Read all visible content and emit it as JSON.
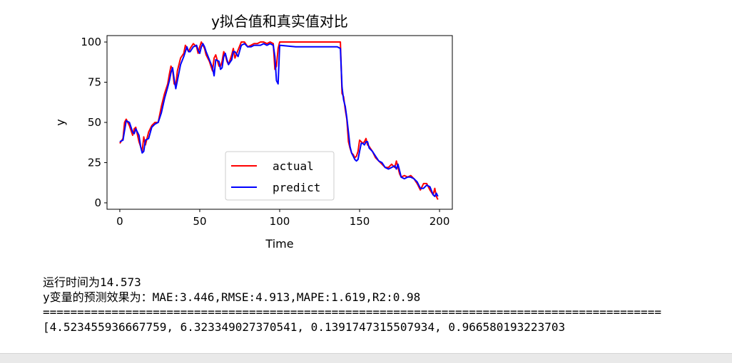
{
  "chart_data": {
    "type": "line",
    "title": "y拟合值和真实值对比",
    "xlabel": "Time",
    "ylabel": "y",
    "xlim": [
      -8,
      208
    ],
    "ylim": [
      -4,
      104
    ],
    "xticks": [
      0,
      50,
      100,
      150,
      200
    ],
    "yticks": [
      0,
      25,
      50,
      75,
      100
    ],
    "legend_position": "lower-center",
    "series": [
      {
        "name": "actual",
        "color": "#ff0000",
        "points": [
          [
            0,
            37
          ],
          [
            2,
            40
          ],
          [
            3,
            50
          ],
          [
            4,
            52
          ],
          [
            6,
            48
          ],
          [
            8,
            42
          ],
          [
            9,
            46
          ],
          [
            10,
            47
          ],
          [
            12,
            38
          ],
          [
            13,
            35
          ],
          [
            14,
            32
          ],
          [
            15,
            41
          ],
          [
            16,
            36
          ],
          [
            18,
            44
          ],
          [
            20,
            48
          ],
          [
            22,
            50
          ],
          [
            24,
            50
          ],
          [
            26,
            60
          ],
          [
            28,
            68
          ],
          [
            30,
            74
          ],
          [
            31,
            80
          ],
          [
            32,
            85
          ],
          [
            33,
            83
          ],
          [
            34,
            74
          ],
          [
            35,
            73
          ],
          [
            36,
            82
          ],
          [
            38,
            90
          ],
          [
            40,
            93
          ],
          [
            41,
            98
          ],
          [
            42,
            96
          ],
          [
            43,
            94
          ],
          [
            44,
            96
          ],
          [
            46,
            99
          ],
          [
            48,
            97
          ],
          [
            49,
            93
          ],
          [
            50,
            97
          ],
          [
            51,
            100
          ],
          [
            52,
            98
          ],
          [
            53,
            96
          ],
          [
            54,
            92
          ],
          [
            56,
            88
          ],
          [
            58,
            82
          ],
          [
            59,
            90
          ],
          [
            60,
            92
          ],
          [
            62,
            85
          ],
          [
            63,
            85
          ],
          [
            64,
            88
          ],
          [
            65,
            94
          ],
          [
            66,
            92
          ],
          [
            67,
            88
          ],
          [
            68,
            86
          ],
          [
            70,
            92
          ],
          [
            71,
            96
          ],
          [
            72,
            90
          ],
          [
            74,
            95
          ],
          [
            76,
            100
          ],
          [
            78,
            100
          ],
          [
            80,
            97
          ],
          [
            82,
            98
          ],
          [
            84,
            99
          ],
          [
            86,
            99
          ],
          [
            88,
            100
          ],
          [
            90,
            100
          ],
          [
            92,
            99
          ],
          [
            94,
            100
          ],
          [
            96,
            99
          ],
          [
            97,
            83
          ],
          [
            98,
            85
          ],
          [
            99,
            96
          ],
          [
            100,
            100
          ],
          [
            110,
            100
          ],
          [
            120,
            100
          ],
          [
            130,
            100
          ],
          [
            136,
            100
          ],
          [
            138,
            100
          ],
          [
            139,
            68
          ],
          [
            140,
            66
          ],
          [
            141,
            58
          ],
          [
            142,
            52
          ],
          [
            143,
            38
          ],
          [
            144,
            34
          ],
          [
            145,
            31
          ],
          [
            146,
            30
          ],
          [
            147,
            28
          ],
          [
            148,
            29
          ],
          [
            149,
            32
          ],
          [
            150,
            39
          ],
          [
            151,
            38
          ],
          [
            152,
            37
          ],
          [
            153,
            38
          ],
          [
            154,
            40
          ],
          [
            155,
            36
          ],
          [
            156,
            35
          ],
          [
            158,
            32
          ],
          [
            160,
            28
          ],
          [
            162,
            26
          ],
          [
            164,
            24
          ],
          [
            166,
            22
          ],
          [
            168,
            22
          ],
          [
            170,
            24
          ],
          [
            172,
            22
          ],
          [
            173,
            26
          ],
          [
            174,
            22
          ],
          [
            175,
            18
          ],
          [
            176,
            16
          ],
          [
            178,
            17
          ],
          [
            180,
            16
          ],
          [
            182,
            17
          ],
          [
            184,
            15
          ],
          [
            186,
            12
          ],
          [
            188,
            8
          ],
          [
            190,
            12
          ],
          [
            192,
            12
          ],
          [
            194,
            8
          ],
          [
            196,
            5
          ],
          [
            197,
            9
          ],
          [
            198,
            4
          ],
          [
            199,
            2
          ]
        ]
      },
      {
        "name": "predict",
        "color": "#0000ff",
        "points": [
          [
            0,
            38
          ],
          [
            2,
            39
          ],
          [
            3,
            45
          ],
          [
            4,
            51
          ],
          [
            6,
            50
          ],
          [
            8,
            44
          ],
          [
            9,
            43
          ],
          [
            10,
            46
          ],
          [
            12,
            42
          ],
          [
            13,
            35
          ],
          [
            14,
            31
          ],
          [
            15,
            32
          ],
          [
            16,
            39
          ],
          [
            18,
            40
          ],
          [
            20,
            47
          ],
          [
            22,
            49
          ],
          [
            24,
            50
          ],
          [
            26,
            56
          ],
          [
            28,
            65
          ],
          [
            30,
            72
          ],
          [
            31,
            76
          ],
          [
            32,
            81
          ],
          [
            33,
            84
          ],
          [
            34,
            77
          ],
          [
            35,
            71
          ],
          [
            36,
            76
          ],
          [
            38,
            86
          ],
          [
            40,
            91
          ],
          [
            41,
            94
          ],
          [
            42,
            97
          ],
          [
            43,
            94
          ],
          [
            44,
            94
          ],
          [
            46,
            97
          ],
          [
            48,
            98
          ],
          [
            49,
            95
          ],
          [
            50,
            93
          ],
          [
            51,
            97
          ],
          [
            52,
            99
          ],
          [
            53,
            97
          ],
          [
            54,
            94
          ],
          [
            56,
            89
          ],
          [
            58,
            84
          ],
          [
            59,
            79
          ],
          [
            60,
            89
          ],
          [
            62,
            88
          ],
          [
            63,
            83
          ],
          [
            64,
            84
          ],
          [
            65,
            91
          ],
          [
            66,
            93
          ],
          [
            67,
            89
          ],
          [
            68,
            86
          ],
          [
            70,
            89
          ],
          [
            71,
            94
          ],
          [
            72,
            94
          ],
          [
            74,
            91
          ],
          [
            76,
            98
          ],
          [
            78,
            99
          ],
          [
            80,
            97
          ],
          [
            82,
            97
          ],
          [
            84,
            98
          ],
          [
            86,
            98
          ],
          [
            88,
            98
          ],
          [
            90,
            99
          ],
          [
            92,
            98
          ],
          [
            94,
            99
          ],
          [
            96,
            98
          ],
          [
            97,
            91
          ],
          [
            98,
            76
          ],
          [
            99,
            74
          ],
          [
            100,
            98
          ],
          [
            110,
            97
          ],
          [
            120,
            97
          ],
          [
            130,
            97
          ],
          [
            136,
            97
          ],
          [
            138,
            96
          ],
          [
            139,
            72
          ],
          [
            140,
            64
          ],
          [
            141,
            60
          ],
          [
            142,
            53
          ],
          [
            143,
            44
          ],
          [
            144,
            35
          ],
          [
            145,
            31
          ],
          [
            146,
            29
          ],
          [
            147,
            27
          ],
          [
            148,
            26
          ],
          [
            149,
            27
          ],
          [
            150,
            32
          ],
          [
            151,
            37
          ],
          [
            152,
            37
          ],
          [
            153,
            36
          ],
          [
            154,
            38
          ],
          [
            155,
            38
          ],
          [
            156,
            34
          ],
          [
            158,
            32
          ],
          [
            160,
            29
          ],
          [
            162,
            26
          ],
          [
            164,
            25
          ],
          [
            166,
            22
          ],
          [
            168,
            21
          ],
          [
            170,
            22
          ],
          [
            172,
            23
          ],
          [
            173,
            21
          ],
          [
            174,
            24
          ],
          [
            175,
            20
          ],
          [
            176,
            16
          ],
          [
            178,
            15
          ],
          [
            180,
            16
          ],
          [
            182,
            16
          ],
          [
            184,
            15
          ],
          [
            186,
            13
          ],
          [
            188,
            9
          ],
          [
            190,
            9
          ],
          [
            192,
            11
          ],
          [
            194,
            10
          ],
          [
            196,
            5
          ],
          [
            197,
            4
          ],
          [
            198,
            6
          ],
          [
            199,
            4
          ]
        ]
      }
    ]
  },
  "output": {
    "lines": [
      "运行时间为14.573",
      "y变量的预测效果为：MAE:3.446,RMSE:4.913,MAPE:1.619,R2:0.98",
      "==========================================================================================",
      "[4.523455936667759, 6.323349027370541, 0.1391747315507934, 0.966580193223703"
    ]
  }
}
